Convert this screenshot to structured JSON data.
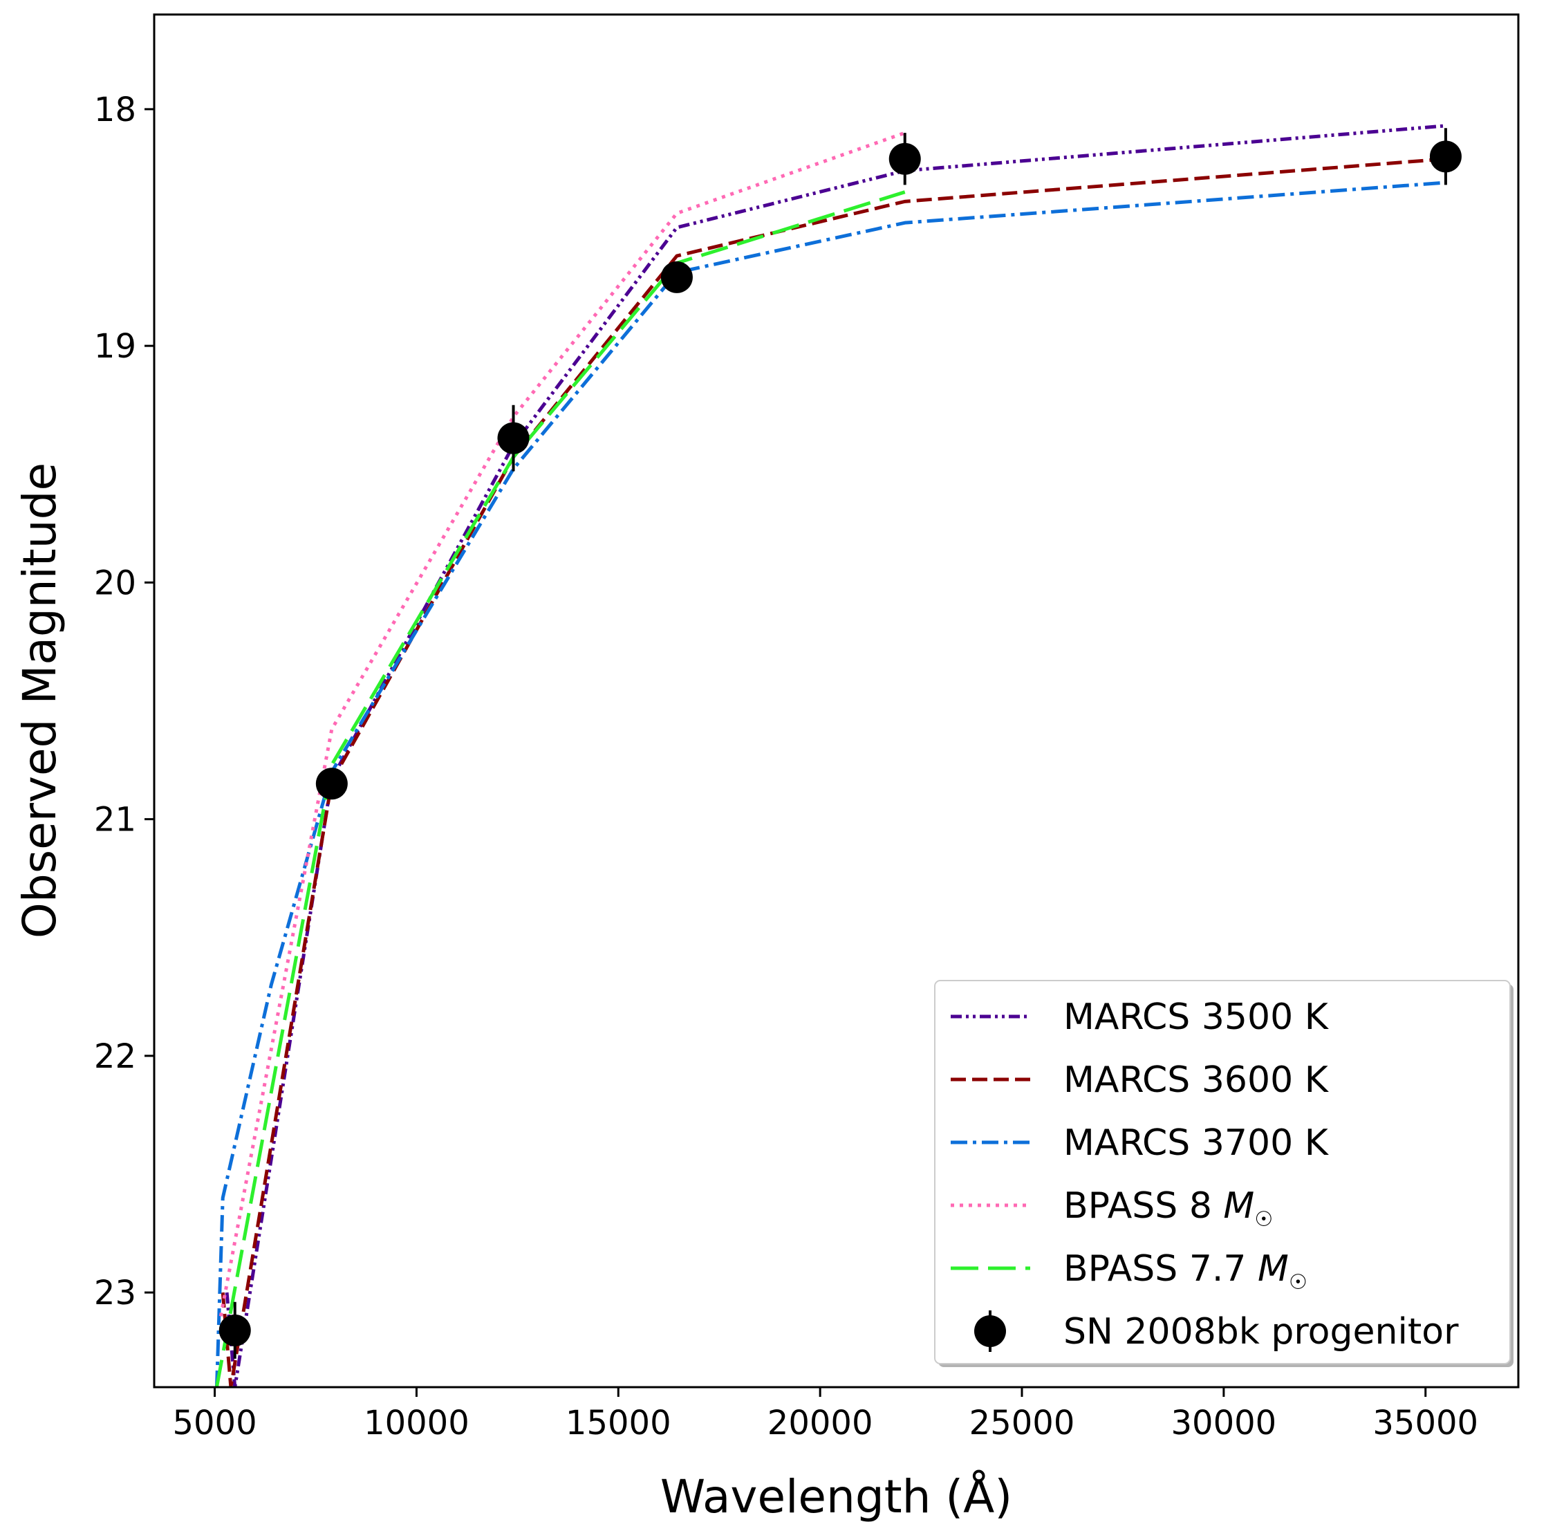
{
  "chart_data": {
    "type": "line",
    "title": "",
    "xlabel": "Wavelength (Å)",
    "ylabel": "Observed Magnitude",
    "xlim": [
      3500,
      37300
    ],
    "ylim": [
      23.4,
      17.6
    ],
    "y_inverted": true,
    "xticks": [
      5000,
      10000,
      15000,
      20000,
      25000,
      30000,
      35000
    ],
    "xtick_labels": [
      "5000",
      "10000",
      "15000",
      "20000",
      "25000",
      "30000",
      "35000"
    ],
    "yticks": [
      18,
      19,
      20,
      21,
      22,
      23
    ],
    "ytick_labels": [
      "18",
      "19",
      "20",
      "21",
      "22",
      "23"
    ],
    "grid": false,
    "legend_position": "bottom-right",
    "series": [
      {
        "name": "MARCS 3500 K",
        "label_main": "MARCS 3500 K",
        "label_math": "",
        "color": "#4b0092",
        "dash": "dashdotdot",
        "x": [
          5300,
          5500,
          7900,
          12400,
          16450,
          22100,
          35500
        ],
        "y": [
          23.0,
          23.4,
          20.83,
          19.42,
          18.5,
          18.26,
          18.07
        ]
      },
      {
        "name": "MARCS 3600 K",
        "label_main": "MARCS 3600 K",
        "label_math": "",
        "color": "#8b0000",
        "dash": "dashed",
        "x": [
          5200,
          5400,
          7900,
          12400,
          16450,
          22100,
          35500
        ],
        "y": [
          23.0,
          23.4,
          20.84,
          19.47,
          18.62,
          18.39,
          18.21
        ]
      },
      {
        "name": "MARCS 3700 K",
        "label_main": "MARCS 3700 K",
        "label_math": "",
        "color": "#0d6fd9",
        "dash": "dashdot",
        "x": [
          5050,
          5200,
          6400,
          7900,
          12400,
          16450,
          22100,
          35500
        ],
        "y": [
          23.4,
          22.6,
          21.7,
          20.8,
          19.52,
          18.69,
          18.48,
          18.31
        ]
      },
      {
        "name": "BPASS 8 M☉",
        "label_main": "BPASS 8",
        "label_math": "M",
        "color": "#ff69b4",
        "dash": "dotted",
        "x": [
          5150,
          7900,
          12400,
          16450,
          22100
        ],
        "y": [
          23.1,
          20.62,
          19.3,
          18.44,
          18.1
        ]
      },
      {
        "name": "BPASS 7.7 M☉",
        "label_main": "BPASS 7.7",
        "label_math": "M",
        "color": "#2df02d",
        "dash": "longdash",
        "x": [
          5050,
          7900,
          12400,
          16450,
          22100
        ],
        "y": [
          23.4,
          20.77,
          19.47,
          18.65,
          18.35
        ]
      }
    ],
    "points": {
      "name": "SN 2008bk progenitor",
      "label_main": "SN 2008bk progenitor",
      "color": "#000000",
      "x": [
        5500,
        7900,
        12400,
        16450,
        22100,
        35500
      ],
      "y": [
        23.16,
        20.85,
        19.39,
        18.71,
        18.21,
        18.2
      ],
      "yerr": [
        0.12,
        0.04,
        0.14,
        0.04,
        0.11,
        0.12
      ]
    }
  }
}
